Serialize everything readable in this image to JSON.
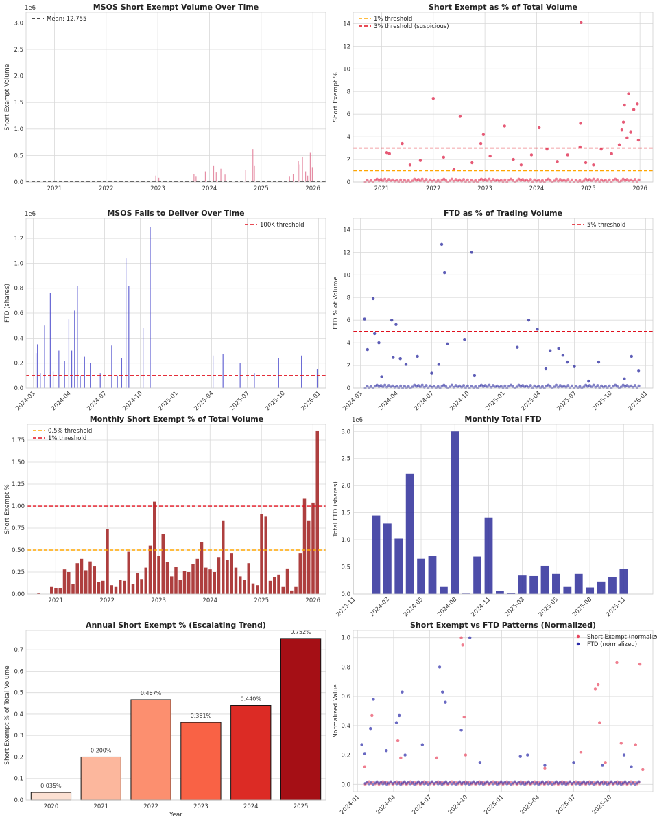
{
  "chart_data": [
    {
      "id": "c1",
      "type": "bar",
      "title": "MSOS Short Exempt Volume Over Time",
      "xlabel": "",
      "ylabel": "Short Exempt Volume",
      "y_scale_label": "1e6",
      "xlim": [
        2020.45,
        2026.25
      ],
      "ylim": [
        0,
        3.2
      ],
      "x_ticks": [
        2021,
        2022,
        2023,
        2024,
        2025,
        2026
      ],
      "x_tick_labels": [
        "2021",
        "2022",
        "2023",
        "2024",
        "2025",
        "2026"
      ],
      "y_ticks": [
        0,
        0.5,
        1.0,
        1.5,
        2.0,
        2.5,
        3.0
      ],
      "y_tick_labels": [
        "0.0",
        "0.5",
        "1.0",
        "1.5",
        "2.0",
        "2.5",
        "3.0"
      ],
      "color": "#e07a95",
      "x": [
        2022.96,
        2023.02,
        2023.7,
        2023.74,
        2023.92,
        2024.08,
        2024.13,
        2024.22,
        2024.3,
        2024.7,
        2024.84,
        2024.87,
        2025.55,
        2025.62,
        2025.72,
        2025.75,
        2025.8,
        2025.86,
        2025.9,
        2025.95,
        2025.99
      ],
      "values": [
        0.12,
        0.08,
        0.15,
        0.1,
        0.2,
        0.3,
        0.18,
        0.25,
        0.14,
        0.22,
        0.62,
        0.3,
        0.1,
        0.15,
        0.4,
        0.33,
        0.48,
        0.2,
        0.12,
        0.55,
        0.28
      ],
      "hlines": [
        {
          "value": 0.012755,
          "label": "Mean: 12,755",
          "color": "#111111",
          "dash": "5,3"
        }
      ],
      "legend": "top-left"
    },
    {
      "id": "c2",
      "type": "scatter",
      "title": "Short Exempt as % of Total Volume",
      "xlabel": "",
      "ylabel": "Short Exempt %",
      "xlim": [
        2020.45,
        2026.25
      ],
      "ylim": [
        0,
        15
      ],
      "x_ticks": [
        2021,
        2022,
        2023,
        2024,
        2025,
        2026
      ],
      "x_tick_labels": [
        "2021",
        "2022",
        "2023",
        "2024",
        "2025",
        "2026"
      ],
      "y_ticks": [
        0,
        2,
        4,
        6,
        8,
        10,
        12,
        14
      ],
      "y_tick_labels": [
        "0",
        "2",
        "4",
        "6",
        "8",
        "10",
        "12",
        "14"
      ],
      "color": "#dc143c",
      "points": [
        [
          2021.1,
          2.6
        ],
        [
          2021.15,
          2.5
        ],
        [
          2021.4,
          3.4
        ],
        [
          2021.55,
          1.5
        ],
        [
          2021.75,
          1.9
        ],
        [
          2022.0,
          7.4
        ],
        [
          2022.2,
          2.2
        ],
        [
          2022.4,
          1.1
        ],
        [
          2022.52,
          5.8
        ],
        [
          2022.75,
          1.7
        ],
        [
          2022.92,
          3.4
        ],
        [
          2022.97,
          4.2
        ],
        [
          2023.1,
          2.3
        ],
        [
          2023.38,
          4.95
        ],
        [
          2023.55,
          2.0
        ],
        [
          2023.7,
          1.5
        ],
        [
          2023.9,
          2.4
        ],
        [
          2024.05,
          4.8
        ],
        [
          2024.2,
          2.9
        ],
        [
          2024.4,
          1.8
        ],
        [
          2024.6,
          2.4
        ],
        [
          2024.84,
          3.1
        ],
        [
          2024.85,
          5.2
        ],
        [
          2024.86,
          14.1
        ],
        [
          2024.95,
          1.7
        ],
        [
          2025.1,
          1.5
        ],
        [
          2025.25,
          2.9
        ],
        [
          2025.45,
          2.5
        ],
        [
          2025.6,
          3.3
        ],
        [
          2025.65,
          4.6
        ],
        [
          2025.68,
          5.3
        ],
        [
          2025.7,
          6.8
        ],
        [
          2025.75,
          3.9
        ],
        [
          2025.78,
          7.8
        ],
        [
          2025.82,
          4.4
        ],
        [
          2025.88,
          6.4
        ],
        [
          2025.95,
          6.9
        ],
        [
          2025.97,
          3.7
        ]
      ],
      "hlines": [
        {
          "value": 1,
          "label": "1% threshold",
          "color": "#ffa500",
          "dash": "5,3"
        },
        {
          "value": 3,
          "label": "3% threshold (suspicious)",
          "color": "#e0101e",
          "dash": "5,3"
        }
      ],
      "legend": "top-left"
    },
    {
      "id": "c3",
      "type": "bar",
      "title": "MSOS Fails to Deliver Over Time",
      "xlabel": "",
      "ylabel": "FTD (shares)",
      "y_scale_label": "1e6",
      "xlim": [
        2023.95,
        2026.05
      ],
      "ylim": [
        0,
        1.36
      ],
      "x_ticks": [
        2024.0,
        2024.25,
        2024.5,
        2024.75,
        2025.0,
        2025.25,
        2025.5,
        2025.75,
        2026.0
      ],
      "x_tick_labels": [
        "2024-01",
        "2024-04",
        "2024-07",
        "2024-10",
        "2025-01",
        "2025-04",
        "2025-07",
        "2025-10",
        "2026-01"
      ],
      "y_ticks": [
        0,
        0.2,
        0.4,
        0.6,
        0.8,
        1.0,
        1.2
      ],
      "y_tick_labels": [
        "0.0",
        "0.2",
        "0.4",
        "0.6",
        "0.8",
        "1.0",
        "1.2"
      ],
      "color": "#4d4dcc",
      "x": [
        2024.02,
        2024.03,
        2024.05,
        2024.08,
        2024.12,
        2024.14,
        2024.18,
        2024.22,
        2024.25,
        2024.27,
        2024.29,
        2024.31,
        2024.33,
        2024.36,
        2024.4,
        2024.47,
        2024.55,
        2024.59,
        2024.62,
        2024.65,
        2024.67,
        2024.77,
        2024.82,
        2025.26,
        2025.33,
        2025.45,
        2025.55,
        2025.72,
        2025.88,
        2025.99
      ],
      "values": [
        0.28,
        0.35,
        0.12,
        0.5,
        0.76,
        0.13,
        0.3,
        0.22,
        0.55,
        0.3,
        0.62,
        0.82,
        0.1,
        0.25,
        0.2,
        0.12,
        0.34,
        0.1,
        0.24,
        1.04,
        0.82,
        0.48,
        1.29,
        0.26,
        0.27,
        0.2,
        0.12,
        0.24,
        0.26,
        0.15
      ],
      "hlines": [
        {
          "value": 0.1,
          "label": "100K threshold",
          "color": "#e0101e",
          "dash": "5,3"
        }
      ],
      "legend": "top-right"
    },
    {
      "id": "c4",
      "type": "scatter",
      "title": "FTD as % of Trading Volume",
      "xlabel": "",
      "ylabel": "FTD % of Volume",
      "xlim": [
        2023.95,
        2026.05
      ],
      "ylim": [
        0,
        15
      ],
      "x_ticks": [
        2024.0,
        2024.25,
        2024.5,
        2024.75,
        2025.0,
        2025.25,
        2025.5,
        2025.75,
        2026.0
      ],
      "x_tick_labels": [
        "2024-01",
        "2024-04",
        "2024-07",
        "2024-10",
        "2025-01",
        "2025-04",
        "2025-07",
        "2025-10",
        "2026-01"
      ],
      "y_ticks": [
        0,
        2,
        4,
        6,
        8,
        10,
        12,
        14
      ],
      "y_tick_labels": [
        "0",
        "2",
        "4",
        "6",
        "8",
        "10",
        "12",
        "14"
      ],
      "color": "#1a1a99",
      "points": [
        [
          2024.03,
          6.1
        ],
        [
          2024.05,
          3.4
        ],
        [
          2024.09,
          7.9
        ],
        [
          2024.1,
          4.8
        ],
        [
          2024.13,
          4.0
        ],
        [
          2024.22,
          6.0
        ],
        [
          2024.25,
          5.6
        ],
        [
          2024.23,
          2.7
        ],
        [
          2024.28,
          2.6
        ],
        [
          2024.32,
          2.1
        ],
        [
          2024.4,
          2.8
        ],
        [
          2024.55,
          2.1
        ],
        [
          2024.57,
          12.7
        ],
        [
          2024.59,
          10.2
        ],
        [
          2024.61,
          3.9
        ],
        [
          2024.73,
          4.3
        ],
        [
          2024.78,
          12.0
        ],
        [
          2025.1,
          3.6
        ],
        [
          2025.18,
          6.0
        ],
        [
          2025.24,
          5.2
        ],
        [
          2025.33,
          3.3
        ],
        [
          2025.39,
          3.5
        ],
        [
          2025.42,
          2.9
        ],
        [
          2025.45,
          2.3
        ],
        [
          2025.5,
          1.9
        ],
        [
          2025.67,
          2.3
        ],
        [
          2025.9,
          2.8
        ],
        [
          2025.95,
          1.5
        ],
        [
          2024.15,
          1.0
        ],
        [
          2024.5,
          1.3
        ],
        [
          2024.8,
          1.1
        ],
        [
          2025.3,
          1.7
        ],
        [
          2025.6,
          0.6
        ],
        [
          2025.85,
          0.8
        ]
      ],
      "hlines": [
        {
          "value": 5,
          "label": "5% threshold",
          "color": "#e0101e",
          "dash": "5,3"
        }
      ],
      "legend": "top-right"
    },
    {
      "id": "c5",
      "type": "bar",
      "title": "Monthly Short Exempt % of Total Volume",
      "xlabel": "",
      "ylabel": "Short Exempt %",
      "xlim": [
        2020.45,
        2026.25
      ],
      "ylim": [
        0,
        1.93
      ],
      "x_ticks": [
        2021,
        2022,
        2023,
        2024,
        2025,
        2026
      ],
      "x_tick_labels": [
        "2021",
        "2022",
        "2023",
        "2024",
        "2025",
        "2026"
      ],
      "y_ticks": [
        0,
        0.25,
        0.5,
        0.75,
        1.0,
        1.25,
        1.5,
        1.75
      ],
      "y_tick_labels": [
        "0.00",
        "0.25",
        "0.50",
        "0.75",
        "1.00",
        "1.25",
        "1.50",
        "1.75"
      ],
      "color": "#a52a2a",
      "start": 2020.67,
      "step": 0.0833333,
      "values": [
        0.01,
        0.0,
        0.0,
        0.08,
        0.07,
        0.07,
        0.28,
        0.25,
        0.11,
        0.35,
        0.4,
        0.27,
        0.37,
        0.32,
        0.14,
        0.15,
        0.74,
        0.1,
        0.08,
        0.16,
        0.15,
        0.48,
        0.11,
        0.24,
        0.17,
        0.3,
        0.55,
        1.05,
        0.43,
        0.68,
        0.36,
        0.2,
        0.31,
        0.16,
        0.26,
        0.25,
        0.34,
        0.4,
        0.59,
        0.3,
        0.28,
        0.25,
        0.42,
        0.83,
        0.39,
        0.46,
        0.3,
        0.2,
        0.16,
        0.35,
        0.12,
        0.1,
        0.91,
        0.88,
        0.15,
        0.19,
        0.22,
        0.08,
        0.29,
        0.04,
        0.08,
        0.46,
        1.09,
        0.83,
        1.04,
        1.86
      ],
      "hlines": [
        {
          "value": 0.5,
          "label": "0.5% threshold",
          "color": "#ffa500",
          "dash": "5,3"
        },
        {
          "value": 1.0,
          "label": "1% threshold",
          "color": "#e0101e",
          "dash": "5,3"
        }
      ],
      "legend": "top-left"
    },
    {
      "id": "c6",
      "type": "bar",
      "title": "Monthly Total FTD",
      "xlabel": "",
      "ylabel": "Total FTD (shares)",
      "y_scale_label": "1e6",
      "xlim": [
        2023.83,
        2026.05
      ],
      "ylim": [
        0,
        3.13
      ],
      "x_ticks": [
        2023.833,
        2024.083,
        2024.333,
        2024.583,
        2024.833,
        2025.083,
        2025.333,
        2025.583,
        2025.833
      ],
      "x_tick_labels": [
        "2023-11",
        "2024-02",
        "2024-05",
        "2024-08",
        "2024-11",
        "2025-02",
        "2025-05",
        "2025-08",
        "2025-11"
      ],
      "y_ticks": [
        0,
        0.5,
        1.0,
        1.5,
        2.0,
        2.5,
        3.0
      ],
      "y_tick_labels": [
        "0.0",
        "0.5",
        "1.0",
        "1.5",
        "2.0",
        "2.5",
        "3.0"
      ],
      "color": "#3a3aa0",
      "start": 2024.0,
      "step": 0.0833333,
      "values": [
        1.45,
        1.3,
        1.02,
        2.22,
        0.65,
        0.7,
        0.13,
        3.0,
        0.01,
        0.69,
        1.41,
        0.06,
        0.02,
        0.34,
        0.33,
        0.52,
        0.37,
        0.13,
        0.37,
        0.12,
        0.23,
        0.31,
        0.46
      ],
      "hlines": [],
      "legend": "none"
    },
    {
      "id": "c7",
      "type": "bar",
      "title": "Annual Short Exempt % (Escalating Trend)",
      "xlabel": "Year",
      "ylabel": "Short Exempt % of Total Volume",
      "ylim": [
        0,
        0.79
      ],
      "categories": [
        "2020",
        "2021",
        "2022",
        "2023",
        "2024",
        "2025"
      ],
      "values": [
        0.035,
        0.2,
        0.467,
        0.361,
        0.44,
        0.752
      ],
      "data_labels": [
        "0.035%",
        "0.200%",
        "0.467%",
        "0.361%",
        "0.440%",
        "0.752%"
      ],
      "colors": [
        "#fce0d2",
        "#fcb79d",
        "#fc8f6f",
        "#f96245",
        "#dc2b25",
        "#a50f15"
      ],
      "y_ticks": [
        0,
        0.1,
        0.2,
        0.3,
        0.4,
        0.5,
        0.6,
        0.7
      ],
      "y_tick_labels": [
        "0.0",
        "0.1",
        "0.2",
        "0.3",
        "0.4",
        "0.5",
        "0.6",
        "0.7"
      ],
      "legend": "none"
    },
    {
      "id": "c8",
      "type": "scatter",
      "title": "Short Exempt vs FTD Patterns (Normalized)",
      "xlabel": "",
      "ylabel": "Normalized Value",
      "xlim": [
        2023.97,
        2026.05
      ],
      "ylim": [
        -0.05,
        1.05
      ],
      "x_ticks": [
        2024.0,
        2024.25,
        2024.5,
        2024.75,
        2025.0,
        2025.25,
        2025.5,
        2025.75
      ],
      "x_tick_labels": [
        "2024-01",
        "2024-04",
        "2024-07",
        "2024-10",
        "2025-01",
        "2025-04",
        "2025-07",
        "2025-10"
      ],
      "y_ticks": [
        0,
        0.2,
        0.4,
        0.6,
        0.8,
        1.0
      ],
      "y_tick_labels": [
        "0.0",
        "0.2",
        "0.4",
        "0.6",
        "0.8",
        "1.0"
      ],
      "series": [
        {
          "name": "Short Exempt (normalized)",
          "color": "#e8475f",
          "points": [
            [
              2024.1,
              0.47
            ],
            [
              2024.28,
              0.3
            ],
            [
              2024.72,
              1.0
            ],
            [
              2024.73,
              0.95
            ],
            [
              2024.74,
              0.46
            ],
            [
              2024.75,
              0.2
            ],
            [
              2024.55,
              0.18
            ],
            [
              2025.55,
              0.22
            ],
            [
              2025.65,
              0.65
            ],
            [
              2025.67,
              0.68
            ],
            [
              2025.68,
              0.42
            ],
            [
              2025.8,
              0.83
            ],
            [
              2025.83,
              0.28
            ],
            [
              2025.96,
              0.82
            ],
            [
              2025.93,
              0.27
            ],
            [
              2024.3,
              0.18
            ],
            [
              2024.05,
              0.12
            ],
            [
              2025.3,
              0.11
            ],
            [
              2025.72,
              0.15
            ],
            [
              2025.98,
              0.1
            ]
          ]
        },
        {
          "name": "FTD (normalized)",
          "color": "#2a2aa8",
          "points": [
            [
              2024.03,
              0.27
            ],
            [
              2024.05,
              0.21
            ],
            [
              2024.09,
              0.38
            ],
            [
              2024.11,
              0.58
            ],
            [
              2024.2,
              0.23
            ],
            [
              2024.27,
              0.42
            ],
            [
              2024.29,
              0.47
            ],
            [
              2024.31,
              0.63
            ],
            [
              2024.33,
              0.2
            ],
            [
              2024.45,
              0.27
            ],
            [
              2024.57,
              0.8
            ],
            [
              2024.59,
              0.63
            ],
            [
              2024.61,
              0.56
            ],
            [
              2024.72,
              0.37
            ],
            [
              2024.78,
              1.0
            ],
            [
              2024.85,
              0.15
            ],
            [
              2025.13,
              0.19
            ],
            [
              2025.18,
              0.2
            ],
            [
              2025.3,
              0.13
            ],
            [
              2025.5,
              0.15
            ],
            [
              2025.7,
              0.13
            ],
            [
              2025.85,
              0.2
            ],
            [
              2025.9,
              0.12
            ]
          ]
        }
      ],
      "legend": "top-right"
    }
  ]
}
